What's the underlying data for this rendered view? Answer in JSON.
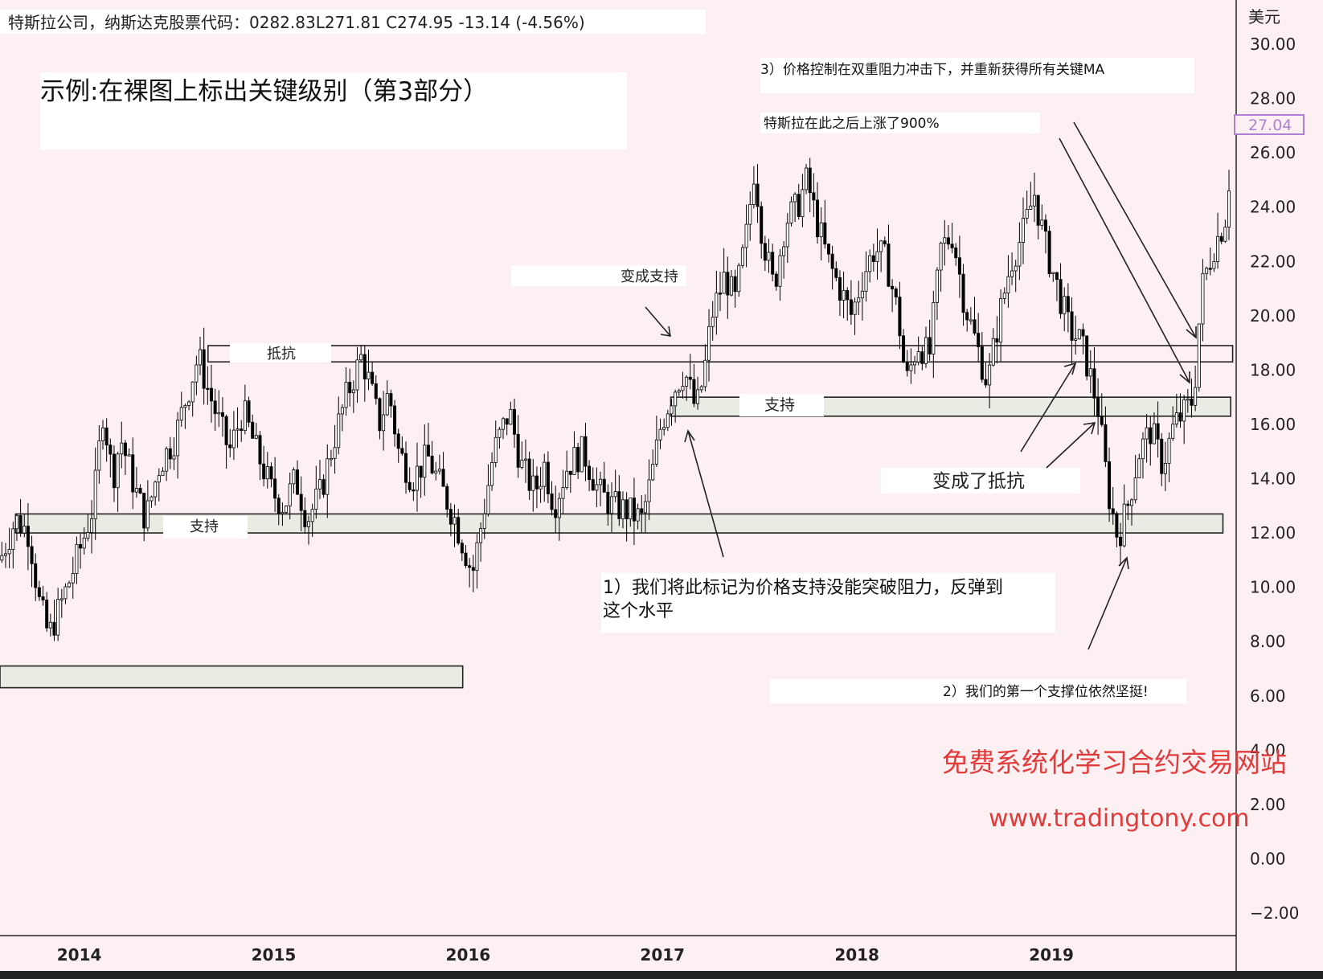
{
  "header": {
    "ticker_line": "特斯拉公司，纳斯达克股票代码：0282.83L271.81 C274.95 -13.14 (-4.56%)"
  },
  "panel_title": "示例:在裸图上标出关键级别（第3部分）",
  "currency_label": "美元",
  "current_price_tag": "27.04",
  "watermark": {
    "line1": "免费系统化学习合约交易网站",
    "line2": "www.tradingtony.com"
  },
  "colors": {
    "background": "#fdf0f2",
    "candle": "#000000",
    "zone_fill": "#e9ece3",
    "zone_stroke": "#222222",
    "price_tag": "#b07fd6",
    "watermark": "#e23b3b"
  },
  "chart_data": {
    "type": "candlestick",
    "ylim": [
      -2,
      30
    ],
    "y_ticks": [
      "30.00",
      "28.00",
      "26.00",
      "24.00",
      "22.00",
      "20.00",
      "18.00",
      "16.00",
      "14.00",
      "12.00",
      "10.00",
      "8.00",
      "6.00",
      "4.00",
      "2.00",
      "0.00",
      "−2.00"
    ],
    "y_tick_values": [
      30,
      28,
      26,
      24,
      22,
      20,
      18,
      16,
      14,
      12,
      10,
      8,
      6,
      4,
      2,
      0,
      -2
    ],
    "x_ticks": [
      "2014",
      "2015",
      "2016",
      "2017",
      "2018",
      "2019"
    ],
    "x_tick_values": [
      2014.0,
      2015.0,
      2016.0,
      2017.0,
      2018.0,
      2019.0
    ],
    "xlim": [
      2013.6,
      2019.95
    ],
    "price_path": [
      [
        2013.6,
        11.0
      ],
      [
        2013.68,
        12.5
      ],
      [
        2013.75,
        12.0
      ],
      [
        2013.8,
        9.5
      ],
      [
        2013.85,
        8.2
      ],
      [
        2013.92,
        9.5
      ],
      [
        2013.97,
        10.5
      ],
      [
        2014.03,
        11.8
      ],
      [
        2014.08,
        13.0
      ],
      [
        2014.13,
        16.5
      ],
      [
        2014.18,
        14.0
      ],
      [
        2014.22,
        15.5
      ],
      [
        2014.3,
        13.5
      ],
      [
        2014.35,
        12.5
      ],
      [
        2014.42,
        14.5
      ],
      [
        2014.5,
        15.5
      ],
      [
        2014.55,
        16.8
      ],
      [
        2014.62,
        18.5
      ],
      [
        2014.66,
        17.5
      ],
      [
        2014.72,
        16.2
      ],
      [
        2014.78,
        15.0
      ],
      [
        2014.85,
        16.5
      ],
      [
        2014.92,
        15.0
      ],
      [
        2015.0,
        13.5
      ],
      [
        2015.06,
        13.0
      ],
      [
        2015.12,
        14.0
      ],
      [
        2015.18,
        12.5
      ],
      [
        2015.25,
        13.5
      ],
      [
        2015.32,
        15.5
      ],
      [
        2015.38,
        17.0
      ],
      [
        2015.46,
        18.5
      ],
      [
        2015.5,
        17.5
      ],
      [
        2015.55,
        16.0
      ],
      [
        2015.6,
        17.2
      ],
      [
        2015.65,
        15.0
      ],
      [
        2015.72,
        14.0
      ],
      [
        2015.8,
        14.8
      ],
      [
        2015.88,
        13.5
      ],
      [
        2015.94,
        12.5
      ],
      [
        2016.03,
        10.5
      ],
      [
        2016.08,
        12.5
      ],
      [
        2016.14,
        15.0
      ],
      [
        2016.22,
        16.5
      ],
      [
        2016.28,
        14.5
      ],
      [
        2016.35,
        13.5
      ],
      [
        2016.4,
        14.5
      ],
      [
        2016.45,
        13.0
      ],
      [
        2016.52,
        14.5
      ],
      [
        2016.6,
        15.0
      ],
      [
        2016.68,
        13.5
      ],
      [
        2016.75,
        13.0
      ],
      [
        2016.83,
        12.8
      ],
      [
        2016.9,
        12.5
      ],
      [
        2016.95,
        14.0
      ],
      [
        2017.0,
        16.0
      ],
      [
        2017.06,
        17.2
      ],
      [
        2017.12,
        18.0
      ],
      [
        2017.18,
        16.5
      ],
      [
        2017.22,
        17.8
      ],
      [
        2017.26,
        20.0
      ],
      [
        2017.33,
        21.5
      ],
      [
        2017.38,
        20.5
      ],
      [
        2017.44,
        23.0
      ],
      [
        2017.48,
        25.5
      ],
      [
        2017.52,
        23.0
      ],
      [
        2017.58,
        21.0
      ],
      [
        2017.64,
        23.5
      ],
      [
        2017.7,
        24.0
      ],
      [
        2017.75,
        25.0
      ],
      [
        2017.8,
        23.5
      ],
      [
        2017.86,
        22.0
      ],
      [
        2017.92,
        21.0
      ],
      [
        2017.98,
        20.0
      ],
      [
        2018.04,
        21.5
      ],
      [
        2018.1,
        22.5
      ],
      [
        2018.16,
        22.0
      ],
      [
        2018.22,
        20.0
      ],
      [
        2018.26,
        17.5
      ],
      [
        2018.32,
        19.0
      ],
      [
        2018.38,
        18.5
      ],
      [
        2018.44,
        22.5
      ],
      [
        2018.5,
        23.0
      ],
      [
        2018.56,
        20.5
      ],
      [
        2018.62,
        19.0
      ],
      [
        2018.68,
        17.5
      ],
      [
        2018.74,
        20.0
      ],
      [
        2018.8,
        22.0
      ],
      [
        2018.86,
        23.0
      ],
      [
        2018.92,
        24.5
      ],
      [
        2018.98,
        22.5
      ],
      [
        2019.04,
        21.0
      ],
      [
        2019.1,
        19.5
      ],
      [
        2019.16,
        19.0
      ],
      [
        2019.2,
        18.0
      ],
      [
        2019.25,
        16.5
      ],
      [
        2019.3,
        13.5
      ],
      [
        2019.35,
        11.8
      ],
      [
        2019.4,
        13.0
      ],
      [
        2019.46,
        15.0
      ],
      [
        2019.52,
        15.8
      ],
      [
        2019.58,
        14.5
      ],
      [
        2019.64,
        16.0
      ],
      [
        2019.7,
        16.5
      ],
      [
        2019.74,
        17.0
      ],
      [
        2019.78,
        21.0
      ],
      [
        2019.84,
        22.5
      ],
      [
        2019.9,
        23.5
      ],
      [
        2019.95,
        27.0
      ]
    ],
    "zones": [
      {
        "y0": 18.3,
        "y1": 18.9,
        "x0": 2014.67,
        "x1": 2019.94,
        "style": "outline"
      },
      {
        "y0": 16.3,
        "y1": 17.0,
        "x0": 2017.05,
        "x1": 2019.93,
        "style": "filled"
      },
      {
        "y0": 12.0,
        "y1": 12.7,
        "x0": 2013.68,
        "x1": 2019.89,
        "style": "filled"
      },
      {
        "y0": 6.3,
        "y1": 7.1,
        "x0": 2013.6,
        "x1": 2015.98,
        "style": "filled"
      }
    ]
  },
  "annotations": {
    "resistance_label": "抵抗",
    "support_label_left": "支持",
    "support_label_mid": "支持",
    "became_support": "变成支持",
    "became_resistance": "变成了抵抗",
    "note1_line1": "1）我们将此标记为价格支持没能突破阻力，反弹到",
    "note1_line2": "这个水平",
    "note2": "2）我们的第一个支撑位依然坚挺!",
    "note3": "3）价格控制在双重阻力冲击下，并重新获得所有关键MA",
    "note4": "特斯拉在此之后上涨了900%"
  }
}
